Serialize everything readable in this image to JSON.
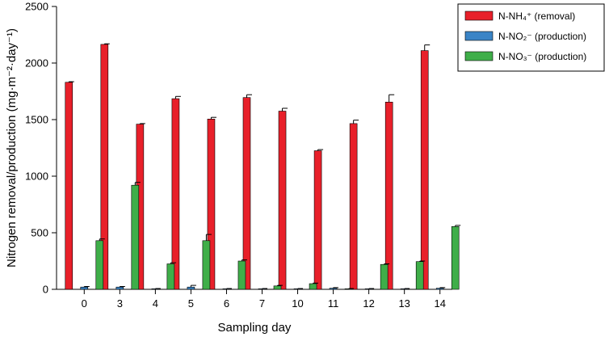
{
  "chart_data": {
    "type": "bar",
    "title": "",
    "xlabel": "Sampling day",
    "ylabel": "Nitrogen removal/production (mg·m⁻²·day⁻¹)",
    "ylim": [
      0,
      2500
    ],
    "yticks": [
      0,
      500,
      1000,
      1500,
      2000,
      2500
    ],
    "categories": [
      "0",
      "3",
      "4",
      "5",
      "6",
      "7",
      "10",
      "11",
      "12",
      "13",
      "14"
    ],
    "grid": false,
    "legend_position": "top-right",
    "series": [
      {
        "name": "N-NH₄⁺ (removal)",
        "color": "#e8202a",
        "values": [
          1830,
          2165,
          1460,
          1685,
          1505,
          1695,
          1575,
          1225,
          1465,
          1655,
          2110
        ],
        "errors": [
          5,
          5,
          5,
          20,
          15,
          25,
          25,
          10,
          30,
          65,
          50
        ]
      },
      {
        "name": "N-NO₂⁻ (production)",
        "color": "#3a84c6",
        "values": [
          20,
          20,
          5,
          20,
          5,
          5,
          5,
          10,
          5,
          5,
          10
        ],
        "errors": [
          5,
          5,
          2,
          15,
          2,
          2,
          2,
          5,
          2,
          2,
          5
        ]
      },
      {
        "name": "N-NO₃⁻ (production)",
        "color": "#3fae49",
        "values": [
          430,
          920,
          225,
          430,
          250,
          30,
          50,
          5,
          220,
          245,
          555
        ],
        "errors": [
          15,
          25,
          10,
          55,
          10,
          5,
          5,
          2,
          5,
          5,
          10
        ]
      }
    ]
  }
}
